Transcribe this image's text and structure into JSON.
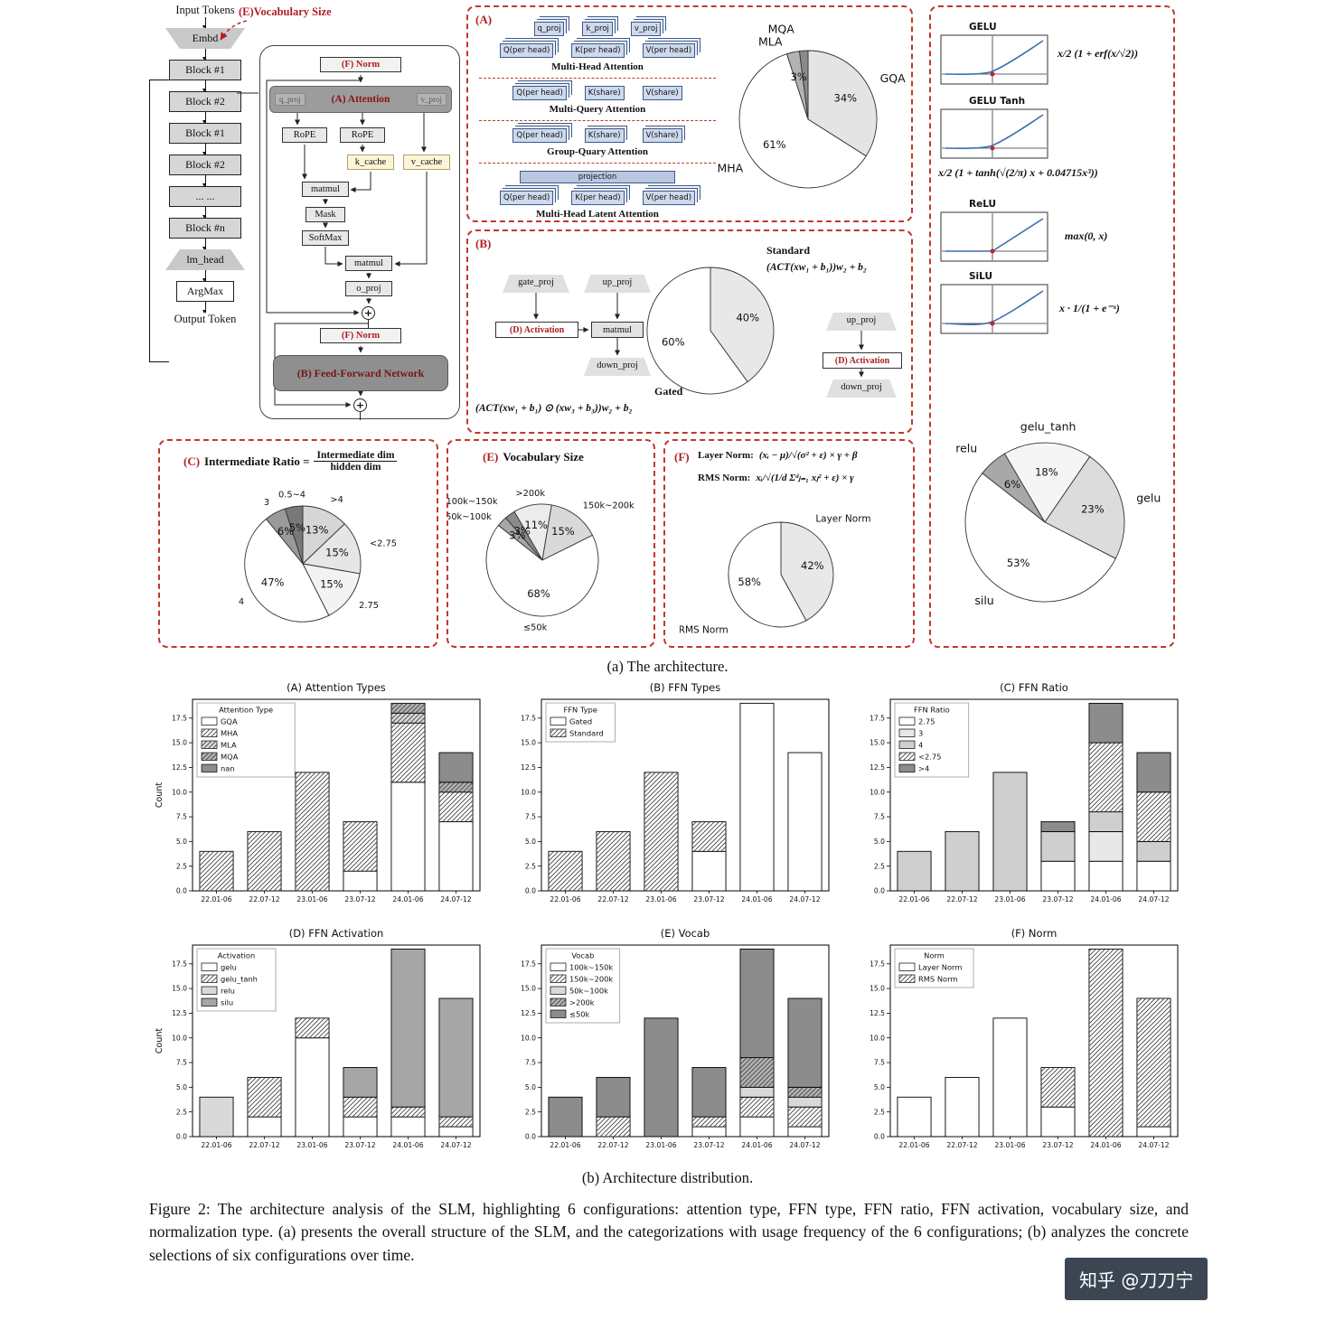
{
  "colors": {
    "accent_red": "#b01f24",
    "dashed_border": "#c0392b",
    "diagram_blue": "#cdd9ec",
    "curve_blue": "#3a6fb0"
  },
  "flowchart": {
    "input_label": "Input Tokens",
    "vocab_annotation": "(E)Vocabulary Size",
    "nodes": [
      "Embd",
      "Block #1",
      "Block #2",
      "Block #1",
      "Block #2",
      "... ...",
      "Block #n",
      "lm_head",
      "ArgMax"
    ],
    "output_label": "Output Token"
  },
  "transformer": {
    "norm_top": "(F) Norm",
    "q_proj": "q_proj",
    "attention": "(A) Attention",
    "v_proj": "v_proj",
    "rope_left": "RoPE",
    "rope_right": "RoPE",
    "k_cache": "k_cache",
    "v_cache": "v_cache",
    "matmul1": "matmul",
    "mask": "Mask",
    "softmax": "SoftMax",
    "matmul2": "matmul",
    "o_proj": "o_proj",
    "plus": "+",
    "norm_mid": "(F) Norm",
    "ffn": "(B) Feed-Forward Network"
  },
  "panel_a": {
    "tag": "(A)",
    "proj_row": [
      "q_proj",
      "k_proj",
      "v_proj"
    ],
    "mha_row": [
      "Q(per head)",
      "K(per head)",
      "V(per head)"
    ],
    "mha_label": "Multi-Head Attention",
    "mqa_row": [
      "Q(per head)",
      "K(share)",
      "V(share)"
    ],
    "mqa_label": "Multi-Query Attention",
    "gqa_row": [
      "Q(per head)",
      "K(share)",
      "V(share)"
    ],
    "gqa_label": "Group-Quary Attention",
    "mla_projection": "projection",
    "mla_row": [
      "Q(per head)",
      "K(per head)",
      "V(per head)"
    ],
    "mla_label": "Multi-Head Latent Attention"
  },
  "panel_b": {
    "tag": "(B)",
    "gate_proj": "gate_proj",
    "up_proj_left": "up_proj",
    "activation_left": "(D) Activation",
    "matmul": "matmul",
    "down_proj_left": "down_proj",
    "gated_formula": "(ACT(xw₁ + b₁) ⊙ (xw₃ + b₃))w₂ + b₂",
    "gated_label": "Gated",
    "standard_label": "Standard",
    "standard_formula": "(ACT(xw₁ + b₁))w₂ + b₂",
    "up_proj_right": "up_proj",
    "activation_right": "(D) Activation",
    "down_proj_right": "down_proj"
  },
  "panel_c": {
    "tag": "(C)",
    "title": "Intermediate Ratio =",
    "numerator": "Intermediate dim",
    "denominator": "hidden dim"
  },
  "panel_e": {
    "tag": "(E)",
    "title": "Vocabulary Size"
  },
  "panel_f": {
    "tag": "(F)",
    "layer_norm_name": "Layer Norm:",
    "layer_norm_formula": "(xᵢ − μ)/√(σ² + ε) × γ + β",
    "rms_norm_name": "RMS Norm:",
    "rms_norm_formula": "xᵢ/√(1/d Σᵈⱼ₌₁ xⱼ² + ε) × γ"
  },
  "panel_act": {
    "plots": [
      {
        "name": "GELU",
        "formula": "x/2 (1 + erf(x/√2))"
      },
      {
        "name": "GELU Tanh",
        "formula": "x/2 (1 + tanh(√(2/π) x + 0.04715x³))"
      },
      {
        "name": "ReLU",
        "formula": "max(0, x)"
      },
      {
        "name": "SiLU",
        "formula": "x · 1/(1 + e⁻ˣ)"
      }
    ]
  },
  "captions": {
    "a": "(a) The architecture.",
    "b": "(b) Architecture distribution.",
    "figure": "Figure 2: The architecture analysis of the SLM, highlighting 6 configurations: attention type, FFN type, FFN ratio, FFN activation, vocabulary size, and normalization type. (a) presents the overall structure of the SLM, and the categorizations with usage frequency of the 6 configurations; (b) analyzes the concrete selections of six configurations over time."
  },
  "watermark": "知乎 @刀刀宁",
  "chart_data": [
    {
      "id": "attention_pie",
      "type": "pie",
      "start_angle": 90,
      "labels": [
        "GQA",
        "MHA",
        "MQA",
        "MLA"
      ],
      "values": [
        34,
        61,
        3,
        2
      ],
      "pcts": [
        "34%",
        "61%",
        "3%",
        ""
      ],
      "colors": [
        "#e4e4e4",
        "#ffffff",
        "#b3b3b3",
        "#8a8a8a"
      ],
      "label_offsets": {
        "2": [
          -10,
          -10
        ],
        "3": [
          -36,
          6
        ]
      }
    },
    {
      "id": "ffn_type_pie",
      "type": "pie",
      "start_angle": 90,
      "hide_labels": true,
      "labels": [
        "Standard",
        "Gated"
      ],
      "values": [
        40,
        60
      ],
      "pcts": [
        "40%",
        "60%"
      ],
      "colors": [
        "#e8e8e8",
        "#ffffff"
      ]
    },
    {
      "id": "ratio_pie",
      "type": "pie",
      "start_angle": 90,
      "labels": [
        ">4",
        "<2.75",
        "2.75",
        "4",
        "3",
        "0.5~4"
      ],
      "values": [
        13,
        15,
        15,
        47,
        6,
        5
      ],
      "pcts": [
        "13%",
        "15%",
        "15%",
        "47%",
        "6%",
        "5%"
      ],
      "colors": [
        "#d6d6d6",
        "#e6e6e6",
        "#f3f3f3",
        "#ffffff",
        "#9a9a9a",
        "#787878"
      ]
    },
    {
      "id": "vocab_pie",
      "type": "pie",
      "start_angle": 120,
      "labels": [
        ">200k",
        "150k~200k",
        "≤50k",
        "50k~100k",
        "100k~150k"
      ],
      "values": [
        11,
        15,
        68,
        3,
        3
      ],
      "pcts": [
        "11%",
        "15%",
        "68%",
        "3%",
        "3%"
      ],
      "colors": [
        "#ececec",
        "#d9d9d9",
        "#ffffff",
        "#a6a6a6",
        "#8a8a8a"
      ],
      "label_offsets": {
        "3": [
          -2,
          4
        ],
        "4": [
          -6,
          -4
        ]
      }
    },
    {
      "id": "norm_pie",
      "type": "pie",
      "start_angle": 90,
      "labels": [
        "Layer Norm",
        "RMS Norm"
      ],
      "values": [
        42,
        58
      ],
      "pcts": [
        "42%",
        "58%"
      ],
      "colors": [
        "#e8e8e8",
        "#ffffff"
      ],
      "label_offsets": {
        "0": [
          -30,
          -44
        ],
        "1": [
          10,
          44
        ]
      }
    },
    {
      "id": "activation_pie",
      "type": "pie",
      "start_angle": 142,
      "labels": [
        "relu",
        "gelu_tanh",
        "gelu",
        "silu"
      ],
      "values": [
        6,
        18,
        23,
        53
      ],
      "pcts": [
        "6%",
        "18%",
        "23%",
        "53%"
      ],
      "colors": [
        "#a8a8a8",
        "#f5f5f5",
        "#dcdcdc",
        "#ffffff"
      ],
      "label_offsets": {
        "0": [
          -6,
          -2
        ]
      }
    },
    {
      "id": "bar_attention",
      "type": "bar",
      "title": "(A) Attention Types",
      "ylabel": "Count",
      "legend_title": "Attention Type",
      "ymax": 19.4,
      "yticks": [
        0,
        2.5,
        5,
        7.5,
        10,
        12.5,
        15,
        17.5
      ],
      "categories": [
        "22.01-06",
        "22.07-12",
        "23.01-06",
        "23.07-12",
        "24.01-06",
        "24.07-12"
      ],
      "series": [
        {
          "name": "GQA",
          "color": "#ffffff",
          "hatch": false,
          "values": [
            0,
            0,
            0,
            2,
            11,
            7
          ]
        },
        {
          "name": "MHA",
          "color": "#ffffff",
          "hatch": true,
          "values": [
            4,
            6,
            12,
            5,
            6,
            3
          ]
        },
        {
          "name": "MLA",
          "color": "#d9d9d9",
          "hatch": true,
          "values": [
            0,
            0,
            0,
            0,
            1,
            0
          ]
        },
        {
          "name": "MQA",
          "color": "#b3b3b3",
          "hatch": true,
          "values": [
            0,
            0,
            0,
            0,
            1,
            1
          ]
        },
        {
          "name": "nan",
          "color": "#8c8c8c",
          "hatch": false,
          "values": [
            0,
            0,
            0,
            0,
            0,
            3
          ]
        }
      ]
    },
    {
      "id": "bar_ffn",
      "type": "bar",
      "title": "(B) FFN Types",
      "legend_title": "FFN Type",
      "ymax": 19.4,
      "yticks": [
        0,
        2.5,
        5,
        7.5,
        10,
        12.5,
        15,
        17.5
      ],
      "categories": [
        "22.01-06",
        "22.07-12",
        "23.01-06",
        "23.07-12",
        "24.01-06",
        "24.07-12"
      ],
      "series": [
        {
          "name": "Gated",
          "color": "#ffffff",
          "hatch": false,
          "values": [
            0,
            0,
            0,
            4,
            19,
            14
          ]
        },
        {
          "name": "Standard",
          "color": "#ffffff",
          "hatch": true,
          "values": [
            4,
            6,
            12,
            3,
            0,
            0
          ]
        }
      ]
    },
    {
      "id": "bar_ratio",
      "type": "bar",
      "title": "(C) FFN Ratio",
      "legend_title": "FFN Ratio",
      "ymax": 19.4,
      "yticks": [
        0,
        2.5,
        5,
        7.5,
        10,
        12.5,
        15,
        17.5
      ],
      "categories": [
        "22.01-06",
        "22.07-12",
        "23.01-06",
        "23.07-12",
        "24.01-06",
        "24.07-12"
      ],
      "series": [
        {
          "name": "2.75",
          "color": "#ffffff",
          "hatch": false,
          "values": [
            0,
            0,
            0,
            3,
            3,
            3
          ]
        },
        {
          "name": "3",
          "color": "#e8e8e8",
          "hatch": false,
          "values": [
            0,
            0,
            0,
            0,
            3,
            0
          ]
        },
        {
          "name": "4",
          "color": "#cfcfcf",
          "hatch": false,
          "values": [
            4,
            6,
            12,
            3,
            2,
            2
          ]
        },
        {
          "name": "<2.75",
          "color": "#ffffff",
          "hatch": true,
          "values": [
            0,
            0,
            0,
            0,
            7,
            5
          ]
        },
        {
          "name": ">4",
          "color": "#8c8c8c",
          "hatch": false,
          "values": [
            0,
            0,
            0,
            1,
            4,
            4
          ]
        }
      ]
    },
    {
      "id": "bar_activation",
      "type": "bar",
      "title": "(D) FFN Activation",
      "ylabel": "Count",
      "legend_title": "Activation",
      "ymax": 19.4,
      "yticks": [
        0,
        2.5,
        5,
        7.5,
        10,
        12.5,
        15,
        17.5
      ],
      "categories": [
        "22.01-06",
        "22.07-12",
        "23.01-06",
        "23.07-12",
        "24.01-06",
        "24.07-12"
      ],
      "series": [
        {
          "name": "gelu",
          "color": "#ffffff",
          "hatch": false,
          "values": [
            0,
            2,
            10,
            2,
            2,
            1
          ]
        },
        {
          "name": "gelu_tanh",
          "color": "#ffffff",
          "hatch": true,
          "values": [
            0,
            4,
            2,
            2,
            1,
            1
          ]
        },
        {
          "name": "relu",
          "color": "#d9d9d9",
          "hatch": false,
          "values": [
            4,
            0,
            0,
            0,
            0,
            0
          ]
        },
        {
          "name": "silu",
          "color": "#a6a6a6",
          "hatch": false,
          "values": [
            0,
            0,
            0,
            3,
            16,
            12
          ]
        }
      ]
    },
    {
      "id": "bar_vocab",
      "type": "bar",
      "title": "(E) Vocab",
      "legend_title": "Vocab",
      "ymax": 19.4,
      "yticks": [
        0,
        2.5,
        5,
        7.5,
        10,
        12.5,
        15,
        17.5
      ],
      "categories": [
        "22.01-06",
        "22.07-12",
        "23.01-06",
        "23.07-12",
        "24.01-06",
        "24.07-12"
      ],
      "series": [
        {
          "name": "100k~150k",
          "color": "#ffffff",
          "hatch": false,
          "values": [
            0,
            0,
            0,
            1,
            2,
            1
          ]
        },
        {
          "name": "150k~200k",
          "color": "#ffffff",
          "hatch": true,
          "values": [
            0,
            2,
            0,
            1,
            2,
            2
          ]
        },
        {
          "name": "50k~100k",
          "color": "#d9d9d9",
          "hatch": false,
          "values": [
            0,
            0,
            0,
            0,
            1,
            1
          ]
        },
        {
          "name": ">200k",
          "color": "#b3b3b3",
          "hatch": true,
          "values": [
            0,
            0,
            0,
            0,
            3,
            1
          ]
        },
        {
          "name": "≤50k",
          "color": "#8c8c8c",
          "hatch": false,
          "values": [
            4,
            4,
            12,
            5,
            11,
            9
          ]
        }
      ]
    },
    {
      "id": "bar_norm",
      "type": "bar",
      "title": "(F) Norm",
      "legend_title": "Norm",
      "ymax": 19.4,
      "yticks": [
        0,
        2.5,
        5,
        7.5,
        10,
        12.5,
        15,
        17.5
      ],
      "categories": [
        "22.01-06",
        "22.07-12",
        "23.01-06",
        "23.07-12",
        "24.01-06",
        "24.07-12"
      ],
      "series": [
        {
          "name": "Layer Norm",
          "color": "#ffffff",
          "hatch": false,
          "values": [
            4,
            6,
            12,
            3,
            0,
            1
          ]
        },
        {
          "name": "RMS Norm",
          "color": "#ffffff",
          "hatch": true,
          "values": [
            0,
            0,
            0,
            4,
            19,
            13
          ]
        }
      ]
    }
  ]
}
